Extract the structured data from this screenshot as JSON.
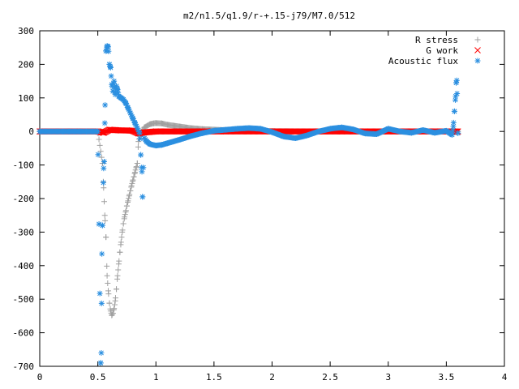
{
  "chart_data": {
    "type": "scatter",
    "title": "m2/n1.5/q1.9/r-+.15-j79/M7.0/512",
    "xlabel": "",
    "ylabel": "",
    "xlim": [
      0,
      4
    ],
    "ylim": [
      -700,
      300
    ],
    "x_ticks": [
      "0",
      "0.5",
      "1",
      "1.5",
      "2",
      "2.5",
      "3",
      "3.5",
      "4"
    ],
    "y_ticks": [
      "300",
      "200",
      "100",
      "0",
      "-100",
      "-200",
      "-300",
      "-400",
      "-500",
      "-600",
      "-700"
    ],
    "grid": false,
    "legend_position": "top-right",
    "series": [
      {
        "name": "R stress",
        "marker": "plus",
        "color": "#a0a0a0",
        "points": [
          [
            0.0,
            0
          ],
          [
            0.25,
            0
          ],
          [
            0.5,
            0
          ],
          [
            0.54,
            -95
          ],
          [
            0.55,
            -168
          ],
          [
            0.56,
            -250
          ],
          [
            0.57,
            -315
          ],
          [
            0.58,
            -430
          ],
          [
            0.59,
            -475
          ],
          [
            0.6,
            -512
          ],
          [
            0.61,
            -535
          ],
          [
            0.62,
            -548
          ],
          [
            0.63,
            -542
          ],
          [
            0.64,
            -528
          ],
          [
            0.65,
            -505
          ],
          [
            0.66,
            -470
          ],
          [
            0.67,
            -430
          ],
          [
            0.68,
            -395
          ],
          [
            0.69,
            -360
          ],
          [
            0.7,
            -330
          ],
          [
            0.71,
            -300
          ],
          [
            0.72,
            -275
          ],
          [
            0.73,
            -255
          ],
          [
            0.74,
            -240
          ],
          [
            0.75,
            -222
          ],
          [
            0.76,
            -207
          ],
          [
            0.77,
            -192
          ],
          [
            0.78,
            -177
          ],
          [
            0.79,
            -162
          ],
          [
            0.8,
            -148
          ],
          [
            0.81,
            -135
          ],
          [
            0.82,
            -122
          ],
          [
            0.83,
            -108
          ],
          [
            0.84,
            -95
          ],
          [
            0.85,
            -30
          ],
          [
            0.86,
            -15
          ],
          [
            0.88,
            0
          ],
          [
            0.9,
            12
          ],
          [
            0.93,
            18
          ],
          [
            0.95,
            22
          ],
          [
            0.98,
            24
          ],
          [
            1.0,
            25
          ],
          [
            1.05,
            24
          ],
          [
            1.1,
            20
          ],
          [
            1.2,
            15
          ],
          [
            1.3,
            10
          ],
          [
            1.4,
            7
          ],
          [
            1.6,
            4
          ],
          [
            1.8,
            2
          ],
          [
            2.0,
            1
          ],
          [
            2.4,
            0
          ],
          [
            2.8,
            0
          ],
          [
            3.2,
            0
          ],
          [
            3.6,
            0
          ]
        ]
      },
      {
        "name": "G work",
        "marker": "cross",
        "color": "#ff0000",
        "points": [
          [
            0.0,
            0
          ],
          [
            0.3,
            0
          ],
          [
            0.5,
            0
          ],
          [
            0.55,
            -4
          ],
          [
            0.6,
            5
          ],
          [
            0.65,
            4
          ],
          [
            0.7,
            3
          ],
          [
            0.75,
            3
          ],
          [
            0.8,
            2
          ],
          [
            0.85,
            -6
          ],
          [
            0.9,
            -3
          ],
          [
            1.0,
            0
          ],
          [
            1.2,
            0
          ],
          [
            1.4,
            0
          ],
          [
            1.6,
            0
          ],
          [
            1.8,
            0
          ],
          [
            2.0,
            0
          ],
          [
            2.2,
            0
          ],
          [
            2.4,
            0
          ],
          [
            2.6,
            0
          ],
          [
            2.8,
            0
          ],
          [
            3.0,
            0
          ],
          [
            3.2,
            0
          ],
          [
            3.4,
            0
          ],
          [
            3.6,
            0
          ]
        ]
      },
      {
        "name": "Acoustic flux",
        "marker": "star",
        "color": "#2b8fe0",
        "points": [
          [
            0.0,
            0
          ],
          [
            0.2,
            0
          ],
          [
            0.4,
            0
          ],
          [
            0.5,
            0
          ],
          [
            0.525,
            -690
          ],
          [
            0.53,
            -660
          ],
          [
            0.535,
            -365
          ],
          [
            0.54,
            -280
          ],
          [
            0.55,
            -110
          ],
          [
            0.555,
            -90
          ],
          [
            0.56,
            25
          ],
          [
            0.57,
            240
          ],
          [
            0.58,
            255
          ],
          [
            0.59,
            252
          ],
          [
            0.6,
            200
          ],
          [
            0.61,
            190
          ],
          [
            0.62,
            140
          ],
          [
            0.63,
            120
          ],
          [
            0.64,
            150
          ],
          [
            0.65,
            110
          ],
          [
            0.66,
            135
          ],
          [
            0.67,
            125
          ],
          [
            0.68,
            105
          ],
          [
            0.7,
            100
          ],
          [
            0.72,
            95
          ],
          [
            0.74,
            85
          ],
          [
            0.76,
            70
          ],
          [
            0.78,
            55
          ],
          [
            0.8,
            40
          ],
          [
            0.82,
            25
          ],
          [
            0.84,
            10
          ],
          [
            0.86,
            -5
          ],
          [
            0.87,
            -70
          ],
          [
            0.88,
            -120
          ],
          [
            0.885,
            -195
          ],
          [
            0.9,
            -20
          ],
          [
            0.92,
            -30
          ],
          [
            0.95,
            -38
          ],
          [
            1.0,
            -42
          ],
          [
            1.05,
            -40
          ],
          [
            1.1,
            -35
          ],
          [
            1.2,
            -25
          ],
          [
            1.3,
            -14
          ],
          [
            1.4,
            -5
          ],
          [
            1.5,
            2
          ],
          [
            1.6,
            5
          ],
          [
            1.7,
            8
          ],
          [
            1.8,
            10
          ],
          [
            1.9,
            8
          ],
          [
            2.0,
            -2
          ],
          [
            2.1,
            -15
          ],
          [
            2.2,
            -20
          ],
          [
            2.3,
            -12
          ],
          [
            2.4,
            0
          ],
          [
            2.5,
            8
          ],
          [
            2.6,
            12
          ],
          [
            2.7,
            6
          ],
          [
            2.8,
            -6
          ],
          [
            2.9,
            -8
          ],
          [
            3.0,
            8
          ],
          [
            3.1,
            0
          ],
          [
            3.2,
            -4
          ],
          [
            3.3,
            4
          ],
          [
            3.4,
            -4
          ],
          [
            3.5,
            2
          ],
          [
            3.55,
            -10
          ],
          [
            3.56,
            15
          ],
          [
            3.57,
            60
          ],
          [
            3.58,
            105
          ],
          [
            3.585,
            145
          ],
          [
            3.59,
            152
          ],
          [
            3.6,
            -5
          ]
        ]
      }
    ]
  }
}
